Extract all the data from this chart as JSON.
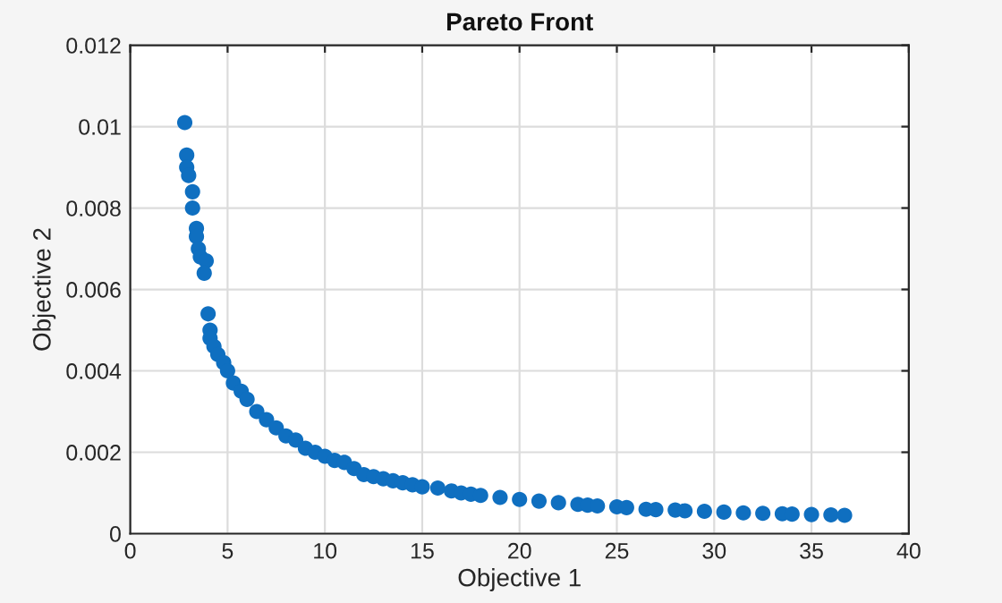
{
  "chart_data": {
    "type": "scatter",
    "title": "Pareto Front",
    "xlabel": "Objective 1",
    "ylabel": "Objective 2",
    "xlim": [
      0,
      40
    ],
    "xticks": [
      0,
      5,
      10,
      15,
      20,
      25,
      30,
      35,
      40
    ],
    "ylim": [
      0,
      0.012
    ],
    "yticks": [
      0,
      0.002,
      0.004,
      0.006,
      0.008,
      0.01,
      0.012
    ],
    "grid": true,
    "marker": "circle",
    "series": [
      {
        "color": "#0f6fc0",
        "x": [
          2.8,
          2.9,
          2.9,
          3.0,
          3.2,
          3.2,
          3.4,
          3.4,
          3.5,
          3.6,
          3.9,
          3.8,
          4.0,
          4.1,
          4.1,
          4.3,
          4.5,
          4.8,
          5.0,
          5.3,
          5.7,
          6.0,
          6.5,
          7.0,
          7.5,
          8.0,
          8.5,
          9.0,
          9.5,
          10,
          10.5,
          11,
          11.5,
          12,
          12.5,
          13,
          13.5,
          14,
          14.5,
          15,
          15.8,
          16.5,
          17,
          17.5,
          18,
          19,
          20,
          21,
          22,
          23,
          23.5,
          24,
          25,
          25.5,
          26.5,
          27,
          28,
          28.5,
          29.5,
          30.5,
          31.5,
          32.5,
          33.5,
          34,
          35,
          36,
          36.7
        ],
        "values": [
          0.0101,
          0.0093,
          0.009,
          0.0088,
          0.0084,
          0.008,
          0.0075,
          0.0073,
          0.007,
          0.0068,
          0.0067,
          0.0064,
          0.0054,
          0.005,
          0.0048,
          0.0046,
          0.0044,
          0.0042,
          0.004,
          0.0037,
          0.0035,
          0.0033,
          0.003,
          0.0028,
          0.0026,
          0.0024,
          0.0023,
          0.0021,
          0.002,
          0.0019,
          0.0018,
          0.00175,
          0.0016,
          0.00145,
          0.0014,
          0.00135,
          0.0013,
          0.00125,
          0.0012,
          0.00115,
          0.00112,
          0.00105,
          0.001,
          0.00097,
          0.00094,
          0.00089,
          0.00084,
          0.0008,
          0.00076,
          0.00072,
          0.0007,
          0.00068,
          0.00066,
          0.00064,
          0.0006,
          0.00059,
          0.00058,
          0.00056,
          0.00055,
          0.00053,
          0.00051,
          0.0005,
          0.00049,
          0.00048,
          0.00047,
          0.00046,
          0.00045
        ]
      }
    ]
  }
}
